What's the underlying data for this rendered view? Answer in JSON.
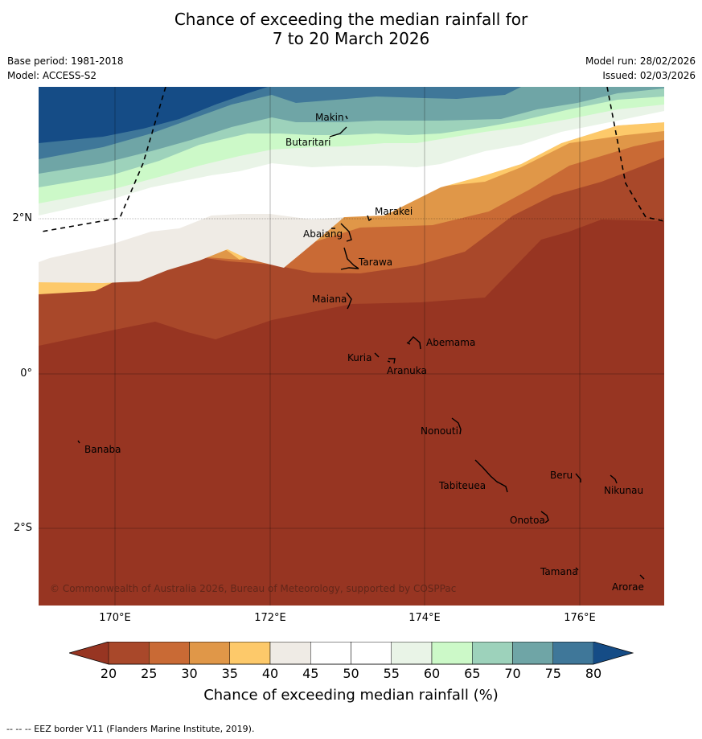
{
  "title_line1": "Chance of exceeding the median rainfall for",
  "title_line2": "7 to 20 March 2026",
  "base_period": "Base period: 1981-2018",
  "model": "Model: ACCESS-S2",
  "model_run": "Model run: 28/02/2026",
  "issued": "Issued: 02/03/2026",
  "lat_labels": [
    "2°N",
    "0°",
    "2°S"
  ],
  "lon_labels": [
    "170°E",
    "172°E",
    "174°E",
    "176°E"
  ],
  "places": [
    {
      "name": "Makin"
    },
    {
      "name": "Butaritari"
    },
    {
      "name": "Marakei"
    },
    {
      "name": "Abaiang"
    },
    {
      "name": "Tarawa"
    },
    {
      "name": "Maiana"
    },
    {
      "name": "Abemama"
    },
    {
      "name": "Kuria"
    },
    {
      "name": "Aranuka"
    },
    {
      "name": "Nonouti"
    },
    {
      "name": "Banaba"
    },
    {
      "name": "Beru"
    },
    {
      "name": "Nikunau"
    },
    {
      "name": "Tabiteuea"
    },
    {
      "name": "Onotoa"
    },
    {
      "name": "Tamana"
    },
    {
      "name": "Arorae"
    }
  ],
  "copyright": "© Commonwealth of Australia 2026, Bureau of Meteorology, supported by COSPPac",
  "colorbar": {
    "ticks": [
      "20",
      "25",
      "30",
      "35",
      "40",
      "45",
      "50",
      "55",
      "60",
      "65",
      "70",
      "75",
      "80"
    ],
    "colors": [
      "#a9482a",
      "#c96a35",
      "#e09748",
      "#fdc96a",
      "#efebe5",
      "#ffffff",
      "#ffffff",
      "#e9f4e7",
      "#ccf9c8",
      "#9dd2bb",
      "#6fa5a6",
      "#3f7799",
      "#154c86"
    ],
    "under_color": "#973522",
    "over_color": "#154c86",
    "label": "Chance of exceeding median rainfall (%)"
  },
  "footer": "--  --  -- EEZ border V11 (Flanders Marine Institute, 2019)."
}
